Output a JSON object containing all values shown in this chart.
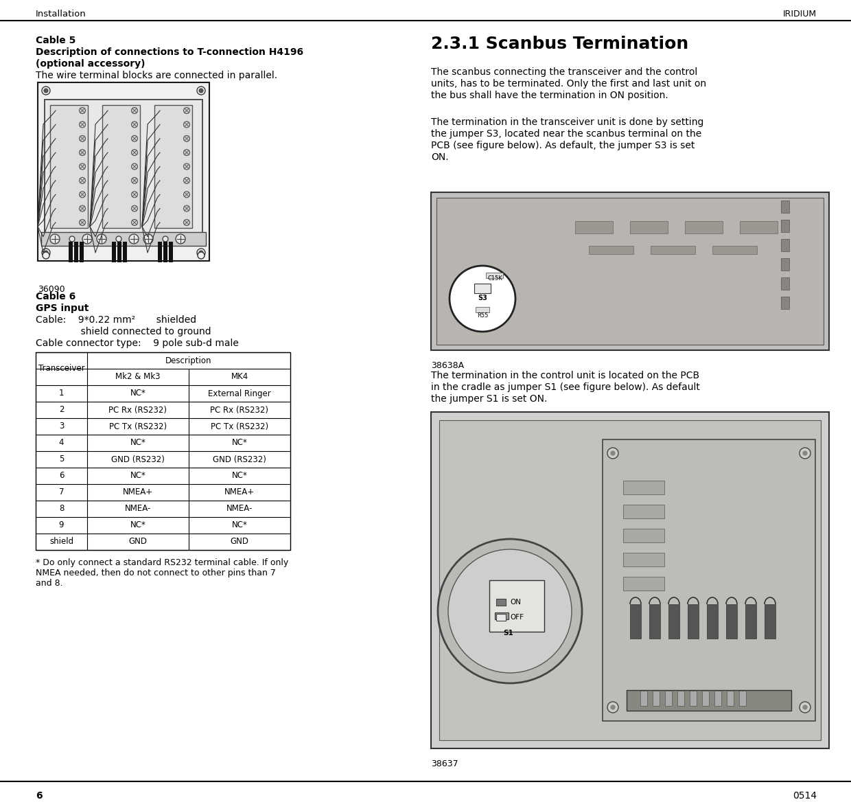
{
  "page_title_left": "Installation",
  "page_title_right": "IRIDIUM",
  "page_number": "6",
  "page_code": "0514",
  "cable5_title": "Cable 5",
  "cable5_line2": "Description of connections to T-connection H4196",
  "cable5_line3": "(optional accessory)",
  "cable5_body": "The wire terminal blocks are connected in parallel.",
  "cable5_img_label": "36090",
  "cable6_title": "Cable 6",
  "cable6_subtitle": "GPS input",
  "cable6_line1": "Cable:    9*0.22 mm²       shielded",
  "cable6_line2": "               shield connected to ground",
  "cable6_line3": "Cable connector type:    9 pole sub-d male",
  "table_rows": [
    [
      "1",
      "NC*",
      "External Ringer"
    ],
    [
      "2",
      "PC Rx (RS232)",
      "PC Rx (RS232)"
    ],
    [
      "3",
      "PC Tx (RS232)",
      "PC Tx (RS232)"
    ],
    [
      "4",
      "NC*",
      "NC*"
    ],
    [
      "5",
      "GND (RS232)",
      "GND (RS232)"
    ],
    [
      "6",
      "NC*",
      "NC*"
    ],
    [
      "7",
      "NMEA+",
      "NMEA+"
    ],
    [
      "8",
      "NMEA-",
      "NMEA-"
    ],
    [
      "9",
      "NC*",
      "NC*"
    ],
    [
      "shield",
      "GND",
      "GND"
    ]
  ],
  "footnote_line1": "* Do only connect a standard RS232 terminal cable. If only",
  "footnote_line2": "NMEA needed, then do not connect to other pins than 7",
  "footnote_line3": "and 8.",
  "section_title": "2.3.1 Scanbus Termination",
  "section_body1_line1": "The scanbus connecting the transceiver and the control",
  "section_body1_line2": "units, has to be terminated. Only the first and last unit on",
  "section_body1_line3": "the bus shall have the termination in ON position.",
  "section_body2_line1": "The termination in the transceiver unit is done by setting",
  "section_body2_line2": "the jumper S3, located near the scanbus terminal on the",
  "section_body2_line3": "PCB (see figure below). As default, the jumper S3 is set",
  "section_body2_line4": "ON.",
  "pcb_img_label": "38638A",
  "section_body3_line1": "The termination in the control unit is located on the PCB",
  "section_body3_line2": "in the cradle as jumper S1 (see figure below). As default",
  "section_body3_line3": "the jumper S1 is set ON.",
  "control_img_label": "38637",
  "bg_color": "#ffffff",
  "text_color": "#000000"
}
